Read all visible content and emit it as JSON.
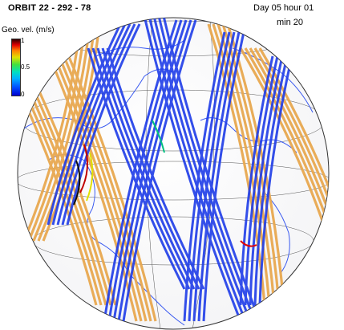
{
  "header": {
    "title": "ORBIT 22 - 292 - 78",
    "day_hour": "Day 05  hour 01",
    "minute": "min 20"
  },
  "colorbar": {
    "label": "Geo. vel. (m/s)",
    "tick_top": "1",
    "tick_mid": "0.5",
    "tick_bottom": "0",
    "range": [
      0,
      1
    ]
  },
  "colors": {
    "ascending_tracks": "#e8a850",
    "descending_tracks": "#1e3ce8",
    "coastlines": "#3a5af0",
    "grid_lines": "#555555",
    "globe_background": "#ffffff"
  },
  "icons": [
    "globe-icon",
    "colorbar-icon"
  ]
}
